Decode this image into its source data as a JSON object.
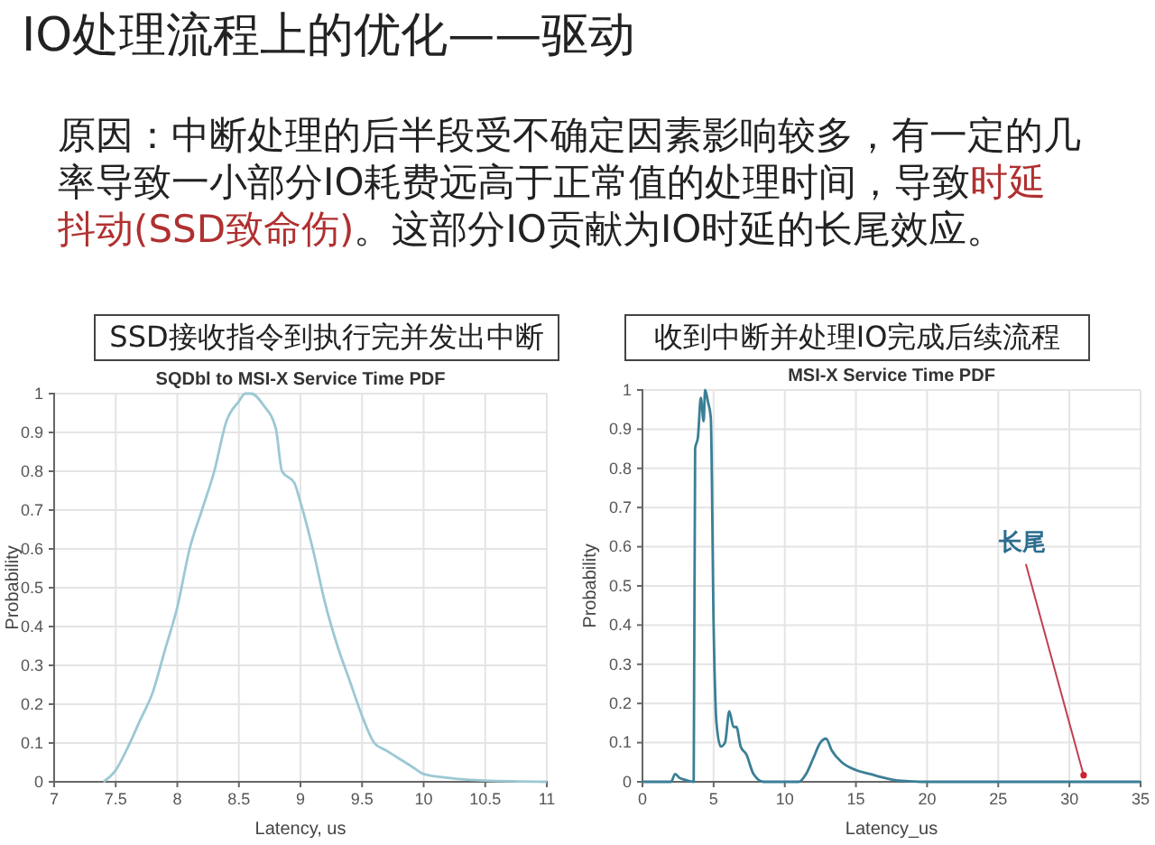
{
  "chart_data": [
    {
      "type": "other",
      "title": "IO处理流程上的优化——驱动",
      "annotations": [
        "原因：中断处理的后半段受不确定因素影响较多，有一定的几率导致一小部分IO耗费远高于正常值的处理时间，导致",
        "时延抖动(SSD致命伤)",
        "。这部分IO贡献为IO时延的长尾效应。"
      ]
    },
    {
      "type": "line",
      "title": "SSD接收指令到执行完并发出中断",
      "subtitle": "SQDbl to MSI-X Service Time PDF",
      "xlabel": "Latency, us",
      "ylabel": "Probability",
      "xlim": [
        7,
        11
      ],
      "xticks": [
        7,
        7.5,
        8,
        8.5,
        9,
        9.5,
        10,
        10.5,
        11
      ],
      "ylim": [
        0,
        1
      ],
      "yticks": [
        0,
        0.1,
        0.2,
        0.3,
        0.4,
        0.5,
        0.6,
        0.7,
        0.8,
        0.9,
        1
      ],
      "grid": true,
      "marker": "none",
      "series": [
        {
          "color": "#9cc8d4",
          "x": [
            7.4,
            7.5,
            7.6,
            7.7,
            7.8,
            7.9,
            8.0,
            8.1,
            8.2,
            8.3,
            8.4,
            8.5,
            8.55,
            8.6,
            8.7,
            8.8,
            8.85,
            8.95,
            9.0,
            9.1,
            9.2,
            9.3,
            9.4,
            9.5,
            9.6,
            9.7,
            9.8,
            9.9,
            10.0,
            10.2,
            10.5,
            11
          ],
          "values": [
            0,
            0.03,
            0.09,
            0.16,
            0.23,
            0.34,
            0.45,
            0.6,
            0.7,
            0.8,
            0.93,
            0.98,
            1.0,
            1.0,
            0.97,
            0.91,
            0.8,
            0.77,
            0.72,
            0.6,
            0.46,
            0.35,
            0.26,
            0.17,
            0.1,
            0.08,
            0.06,
            0.04,
            0.02,
            0.01,
            0.003,
            0
          ]
        }
      ]
    },
    {
      "type": "line",
      "title": "收到中断并处理IO完成后续流程",
      "subtitle": "MSI-X Service Time PDF",
      "xlabel": "Latency_us",
      "ylabel": "Probability",
      "xlim": [
        0,
        35
      ],
      "xticks": [
        0,
        5,
        10,
        15,
        20,
        25,
        30,
        35
      ],
      "ylim": [
        0,
        1
      ],
      "yticks": [
        0,
        0.1,
        0.2,
        0.3,
        0.4,
        0.5,
        0.6,
        0.7,
        0.8,
        0.9,
        1
      ],
      "grid": true,
      "marker": "none",
      "annotations": [
        {
          "text": "长尾",
          "x": 31,
          "y": 0.003
        }
      ],
      "series": [
        {
          "color": "#3a7f96",
          "x": [
            0,
            2,
            2.3,
            2.6,
            3,
            3.6,
            3.7,
            3.9,
            4.1,
            4.3,
            4.4,
            4.6,
            4.8,
            5.0,
            5.2,
            5.5,
            5.8,
            6.1,
            6.4,
            6.6,
            6.9,
            7.3,
            7.8,
            8.5,
            11,
            11.5,
            12,
            12.5,
            12.9,
            13.3,
            14,
            15,
            16,
            17,
            18,
            20,
            35
          ],
          "values": [
            0,
            0,
            0.02,
            0.01,
            0.005,
            0,
            0.85,
            0.88,
            0.98,
            0.92,
            1.0,
            0.97,
            0.93,
            0.4,
            0.15,
            0.09,
            0.1,
            0.18,
            0.14,
            0.14,
            0.09,
            0.07,
            0.02,
            0,
            0,
            0.02,
            0.06,
            0.1,
            0.11,
            0.08,
            0.05,
            0.03,
            0.02,
            0.01,
            0.003,
            0,
            0
          ]
        }
      ]
    }
  ]
}
